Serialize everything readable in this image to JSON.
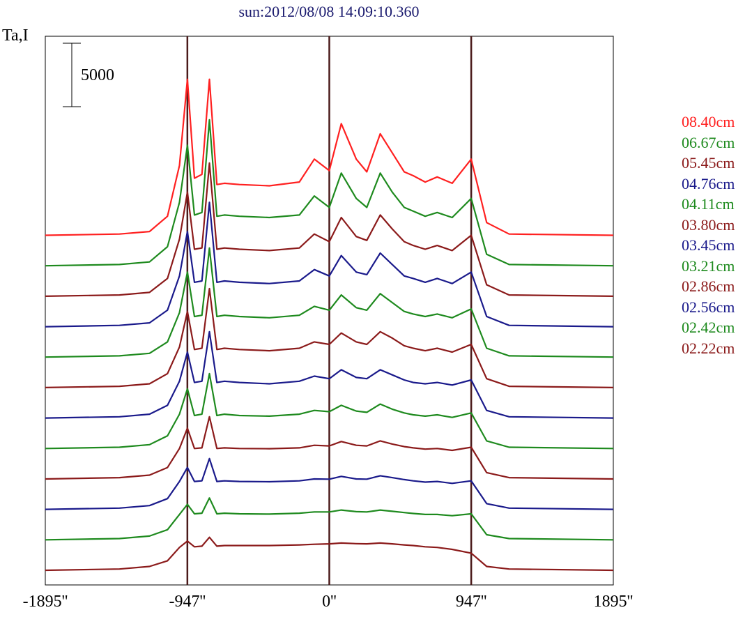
{
  "title": "sun:2012/08/08 14:09:10.360",
  "ylabel": "Ta,I",
  "scale_bar_label": "5000",
  "colors": {
    "frame": "#000000",
    "marker": "#4a1a1a"
  },
  "chart_data": {
    "type": "line",
    "title": "sun:2012/08/08 14:09:10.360",
    "ylabel": "Ta,I",
    "xlabel": "",
    "xlim": [
      -1895,
      1895
    ],
    "x_ticks": [
      "-1895''",
      "-947''",
      "0''",
      "947''",
      "1895''"
    ],
    "x_tick_values": [
      -1895,
      -947,
      0,
      947,
      1895
    ],
    "vertical_markers": [
      -947,
      0,
      947
    ],
    "scale_bar": {
      "value": 5000,
      "label": "5000"
    },
    "offset_between_series": 2400,
    "x": [
      -1895,
      -1400,
      -1200,
      -1080,
      -1000,
      -947,
      -900,
      -850,
      -800,
      -750,
      -700,
      -600,
      -400,
      -200,
      -100,
      0,
      80,
      180,
      250,
      340,
      420,
      500,
      560,
      640,
      720,
      820,
      947,
      1050,
      1200,
      1895
    ],
    "series": [
      {
        "name": "08.40cm",
        "color": "#ff2020",
        "values": [
          0,
          100,
          300,
          1500,
          5500,
          12300,
          4500,
          4800,
          12300,
          4000,
          4100,
          4000,
          3900,
          4200,
          6000,
          5100,
          8800,
          6000,
          5000,
          8000,
          6500,
          5000,
          4700,
          4200,
          4600,
          4100,
          6000,
          1000,
          100,
          0
        ]
      },
      {
        "name": "06.67cm",
        "color": "#1e8a1e",
        "values": [
          0,
          100,
          300,
          1500,
          5000,
          9500,
          4000,
          4200,
          11500,
          3900,
          4000,
          3900,
          3800,
          4000,
          5500,
          4600,
          7300,
          5300,
          4600,
          7300,
          5800,
          4600,
          4300,
          3900,
          4200,
          3800,
          5300,
          900,
          100,
          0
        ]
      },
      {
        "name": "05.45cm",
        "color": "#8b1a1a",
        "values": [
          0,
          100,
          300,
          1400,
          4500,
          8200,
          3700,
          3800,
          10500,
          3700,
          3800,
          3700,
          3600,
          3800,
          4900,
          4300,
          6200,
          4700,
          4400,
          6400,
          5300,
          4300,
          4000,
          3700,
          4000,
          3600,
          4800,
          900,
          100,
          0
        ]
      },
      {
        "name": "04.76cm",
        "color": "#1a1a8b",
        "values": [
          0,
          100,
          300,
          1300,
          4000,
          7500,
          3500,
          3600,
          9800,
          3500,
          3600,
          3500,
          3400,
          3600,
          4500,
          4000,
          5600,
          4300,
          4100,
          5800,
          4900,
          4000,
          3800,
          3500,
          3800,
          3400,
          4300,
          800,
          100,
          0
        ]
      },
      {
        "name": "04.11cm",
        "color": "#1e8a1e",
        "values": [
          0,
          100,
          300,
          1200,
          3500,
          6700,
          3200,
          3300,
          8600,
          3200,
          3300,
          3200,
          3100,
          3300,
          4000,
          3700,
          4900,
          3900,
          3700,
          5000,
          4300,
          3600,
          3400,
          3200,
          3400,
          3100,
          3800,
          700,
          100,
          0
        ]
      },
      {
        "name": "03.80cm",
        "color": "#8b1a1a",
        "values": [
          0,
          100,
          300,
          1100,
          3200,
          6000,
          3000,
          3100,
          7800,
          3000,
          3100,
          3000,
          2900,
          3100,
          3600,
          3400,
          4300,
          3600,
          3400,
          4400,
          3900,
          3300,
          3100,
          2900,
          3100,
          2800,
          3400,
          700,
          100,
          0
        ]
      },
      {
        "name": "03.45cm",
        "color": "#1a1a8b",
        "values": [
          0,
          100,
          300,
          1000,
          2900,
          5200,
          2800,
          2900,
          6800,
          2800,
          2900,
          2800,
          2700,
          2900,
          3300,
          3100,
          3800,
          3200,
          3100,
          3800,
          3400,
          3000,
          2800,
          2700,
          2800,
          2600,
          3000,
          600,
          100,
          0
        ]
      },
      {
        "name": "03.21cm",
        "color": "#1e8a1e",
        "values": [
          0,
          100,
          300,
          1000,
          2700,
          4700,
          2600,
          2700,
          5900,
          2600,
          2700,
          2600,
          2550,
          2700,
          3000,
          2900,
          3400,
          2950,
          2850,
          3500,
          3100,
          2800,
          2650,
          2550,
          2650,
          2450,
          2800,
          600,
          100,
          0
        ]
      },
      {
        "name": "02.86cm",
        "color": "#8b1a1a",
        "values": [
          0,
          100,
          300,
          900,
          2400,
          4000,
          2400,
          2450,
          4900,
          2400,
          2450,
          2400,
          2380,
          2450,
          2650,
          2600,
          2950,
          2650,
          2600,
          3000,
          2750,
          2550,
          2450,
          2350,
          2400,
          2250,
          2500,
          500,
          100,
          0
        ]
      },
      {
        "name": "02.56cm",
        "color": "#1a1a8b",
        "values": [
          0,
          100,
          300,
          850,
          2200,
          3300,
          2200,
          2250,
          4000,
          2200,
          2250,
          2200,
          2180,
          2250,
          2400,
          2380,
          2600,
          2400,
          2380,
          2650,
          2500,
          2350,
          2250,
          2150,
          2200,
          2050,
          2250,
          450,
          100,
          0
        ]
      },
      {
        "name": "02.42cm",
        "color": "#1e8a1e",
        "values": [
          0,
          100,
          300,
          800,
          2000,
          2800,
          2050,
          2100,
          3300,
          2050,
          2100,
          2050,
          2030,
          2100,
          2200,
          2200,
          2350,
          2220,
          2200,
          2350,
          2250,
          2150,
          2080,
          2000,
          2000,
          1900,
          2050,
          400,
          100,
          0
        ]
      },
      {
        "name": "02.22cm",
        "color": "#8b1a1a",
        "values": [
          0,
          100,
          300,
          750,
          1800,
          2300,
          1850,
          1900,
          2600,
          1900,
          1950,
          1950,
          1950,
          2000,
          2050,
          2080,
          2150,
          2100,
          2080,
          2150,
          2080,
          2000,
          1950,
          1850,
          1800,
          1650,
          1350,
          300,
          100,
          0
        ]
      }
    ]
  }
}
